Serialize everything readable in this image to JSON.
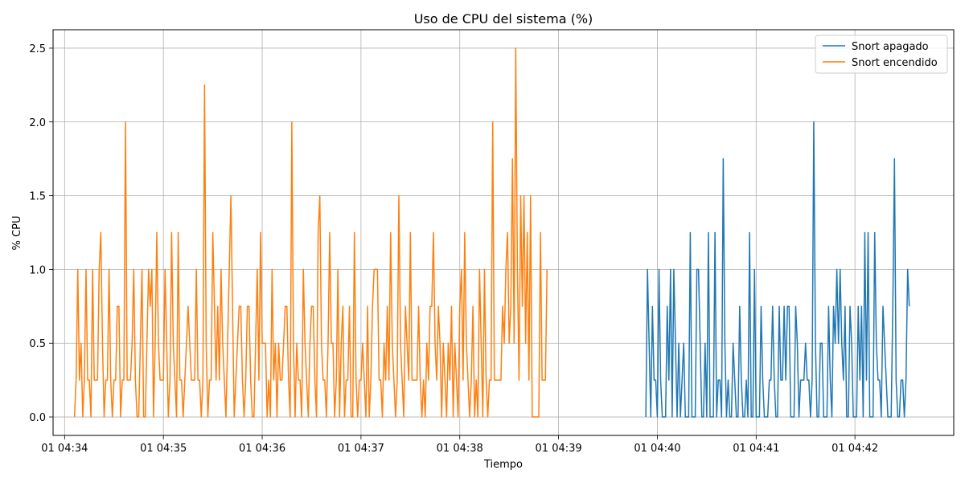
{
  "chart_data": {
    "type": "line",
    "title": "Uso de CPU del sistema (%)",
    "xlabel": "Tiempo",
    "ylabel": "% CPU",
    "x_ticks": [
      "01 04:34",
      "01 04:35",
      "01 04:36",
      "01 04:37",
      "01 04:38",
      "01 04:39",
      "01 04:40",
      "01 04:41",
      "01 04:42"
    ],
    "y_ticks": [
      "0.0",
      "0.5",
      "1.0",
      "1.5",
      "2.0",
      "2.5"
    ],
    "xlim": [
      "04:33:53",
      "04:43:00"
    ],
    "ylim": [
      -0.125,
      2.625
    ],
    "grid": true,
    "legend_position": "top-right",
    "series": [
      {
        "name": "Snort apagado",
        "color": "#1f77b4",
        "x_start": "04:39:53",
        "x_step_seconds": 1,
        "values": [
          0,
          1,
          0.5,
          0,
          0.75,
          0.25,
          0.25,
          0,
          1,
          0.25,
          0,
          0,
          0,
          0.75,
          0.25,
          1,
          0,
          1,
          0.5,
          0,
          0.5,
          0,
          0.25,
          0.5,
          0,
          0,
          0,
          1.25,
          0,
          0,
          0,
          1,
          1,
          0.5,
          0,
          0,
          0.5,
          0,
          1.25,
          0,
          0,
          0,
          1.25,
          0,
          0.25,
          0.25,
          0,
          1.75,
          0.5,
          0,
          0.25,
          0,
          0,
          0.5,
          0.25,
          0,
          0,
          0.75,
          0.25,
          0,
          0,
          0.25,
          0,
          1.25,
          0,
          0,
          1,
          0,
          0,
          0,
          0.75,
          0.25,
          0,
          0,
          0,
          0.25,
          0.25,
          0.75,
          0.25,
          0,
          0,
          0.75,
          0.25,
          0.25,
          0.75,
          0.25,
          0.75,
          0.75,
          0,
          0,
          0,
          0.75,
          0.5,
          0,
          0.25,
          0.25,
          0.25,
          0.5,
          0.25,
          0.25,
          0,
          0.25,
          2,
          0.5,
          0,
          0,
          0.5,
          0.5,
          0,
          0,
          0,
          0.75,
          0.25,
          0,
          0.75,
          0.5,
          1,
          0.5,
          1,
          0.5,
          0.25,
          0.75,
          0,
          0,
          0.75,
          0.5,
          0,
          0,
          0,
          0.75,
          0.25,
          0.75,
          0,
          1.25,
          0.25,
          1.25,
          0,
          0,
          0,
          1.25,
          0.5,
          0.25,
          0.25,
          0,
          0.75,
          0.5,
          0.25,
          0,
          0,
          0,
          0.75,
          1.75,
          0.25,
          0,
          0,
          0.25,
          0.25,
          0,
          0.25,
          1,
          0.75
        ]
      },
      {
        "name": "Snort encendido",
        "color": "#ff7f0e",
        "x_start": "04:34:06",
        "x_step_seconds": 1,
        "values": [
          0,
          0.25,
          1,
          0.25,
          0.5,
          0,
          0.25,
          1,
          0.25,
          0.25,
          0,
          1,
          0.25,
          0.25,
          0.25,
          1,
          1.25,
          0.5,
          0,
          0.25,
          0.25,
          1,
          0.25,
          0,
          0.25,
          0.25,
          0.75,
          0.75,
          0,
          0.25,
          0.25,
          2,
          0.25,
          0.25,
          0.25,
          0.5,
          1,
          0.25,
          0,
          0,
          0.5,
          1,
          0,
          0,
          0.5,
          1,
          0.75,
          1,
          0,
          0.5,
          1.25,
          0.5,
          0.25,
          0.25,
          0.25,
          1,
          0.5,
          0,
          0.25,
          1.25,
          0.5,
          0.25,
          0,
          1.25,
          0.25,
          0.25,
          0,
          0.25,
          0.5,
          0.75,
          0.5,
          0.25,
          0.25,
          0.25,
          1,
          0.25,
          0.25,
          0,
          0.25,
          2.25,
          0.5,
          0,
          0.25,
          0.25,
          1.25,
          0.75,
          0.25,
          0.75,
          0.25,
          1,
          0.5,
          0.25,
          0,
          0.5,
          1,
          1.5,
          0.75,
          0,
          0.25,
          0.5,
          0.75,
          0.75,
          0.25,
          0,
          0.25,
          0.75,
          0.75,
          0.25,
          0,
          0,
          0.5,
          1,
          0.25,
          1.25,
          0.5,
          0.5,
          0.5,
          0,
          0.25,
          0,
          1,
          0.25,
          0.5,
          0,
          0.5,
          0.25,
          0.25,
          0.5,
          0.75,
          0.75,
          0.25,
          0,
          2,
          0.5,
          0,
          0.5,
          0.25,
          0.25,
          0,
          1,
          0.5,
          0.25,
          0,
          0.5,
          0.75,
          0.75,
          0.25,
          0,
          1.25,
          1.5,
          0.5,
          0.25,
          0.25,
          0,
          0.5,
          1.25,
          0.5,
          0.5,
          0,
          0.25,
          1,
          0,
          0.5,
          0.75,
          0,
          0.25,
          0.25,
          0.75,
          0,
          0,
          1.25,
          0.25,
          0,
          0.25,
          0.25,
          0.5,
          0.25,
          0,
          0.75,
          0,
          0.25,
          0.75,
          1,
          1,
          1,
          0.25,
          0.25,
          0,
          0.5,
          0.25,
          0.75,
          0.25,
          1.25,
          0.5,
          0.25,
          0,
          0.25,
          1.5,
          0.5,
          0.25,
          0,
          0.75,
          0.5,
          0.25,
          1.25,
          0.25,
          0.25,
          0.25,
          0.25,
          0.75,
          0.25,
          0,
          0.25,
          0,
          0.5,
          0.25,
          0.75,
          0.75,
          1.25,
          0.5,
          0.25,
          0.75,
          0.5,
          0,
          0.5,
          0.25,
          0,
          0.5,
          0.25,
          0.75,
          0,
          0.5,
          0.25,
          0,
          0.75,
          1,
          0.25,
          1.25,
          0.5,
          0.25,
          0,
          0.25,
          0.75,
          0,
          0.25,
          0,
          1,
          0.5,
          0,
          1,
          0.25,
          0,
          0.25,
          0.25,
          2,
          0.25,
          0.25,
          0.25,
          0.25,
          0.25,
          0.75,
          0.5,
          1,
          1.25,
          0.5,
          0.75,
          1.75,
          0.5,
          2.5,
          1,
          0.25,
          1.5,
          0.75,
          1.5,
          0.5,
          1.25,
          0.25,
          1.5,
          0,
          0,
          0,
          0,
          0,
          1.25,
          0.25,
          0.25,
          0.25,
          1
        ]
      }
    ]
  }
}
